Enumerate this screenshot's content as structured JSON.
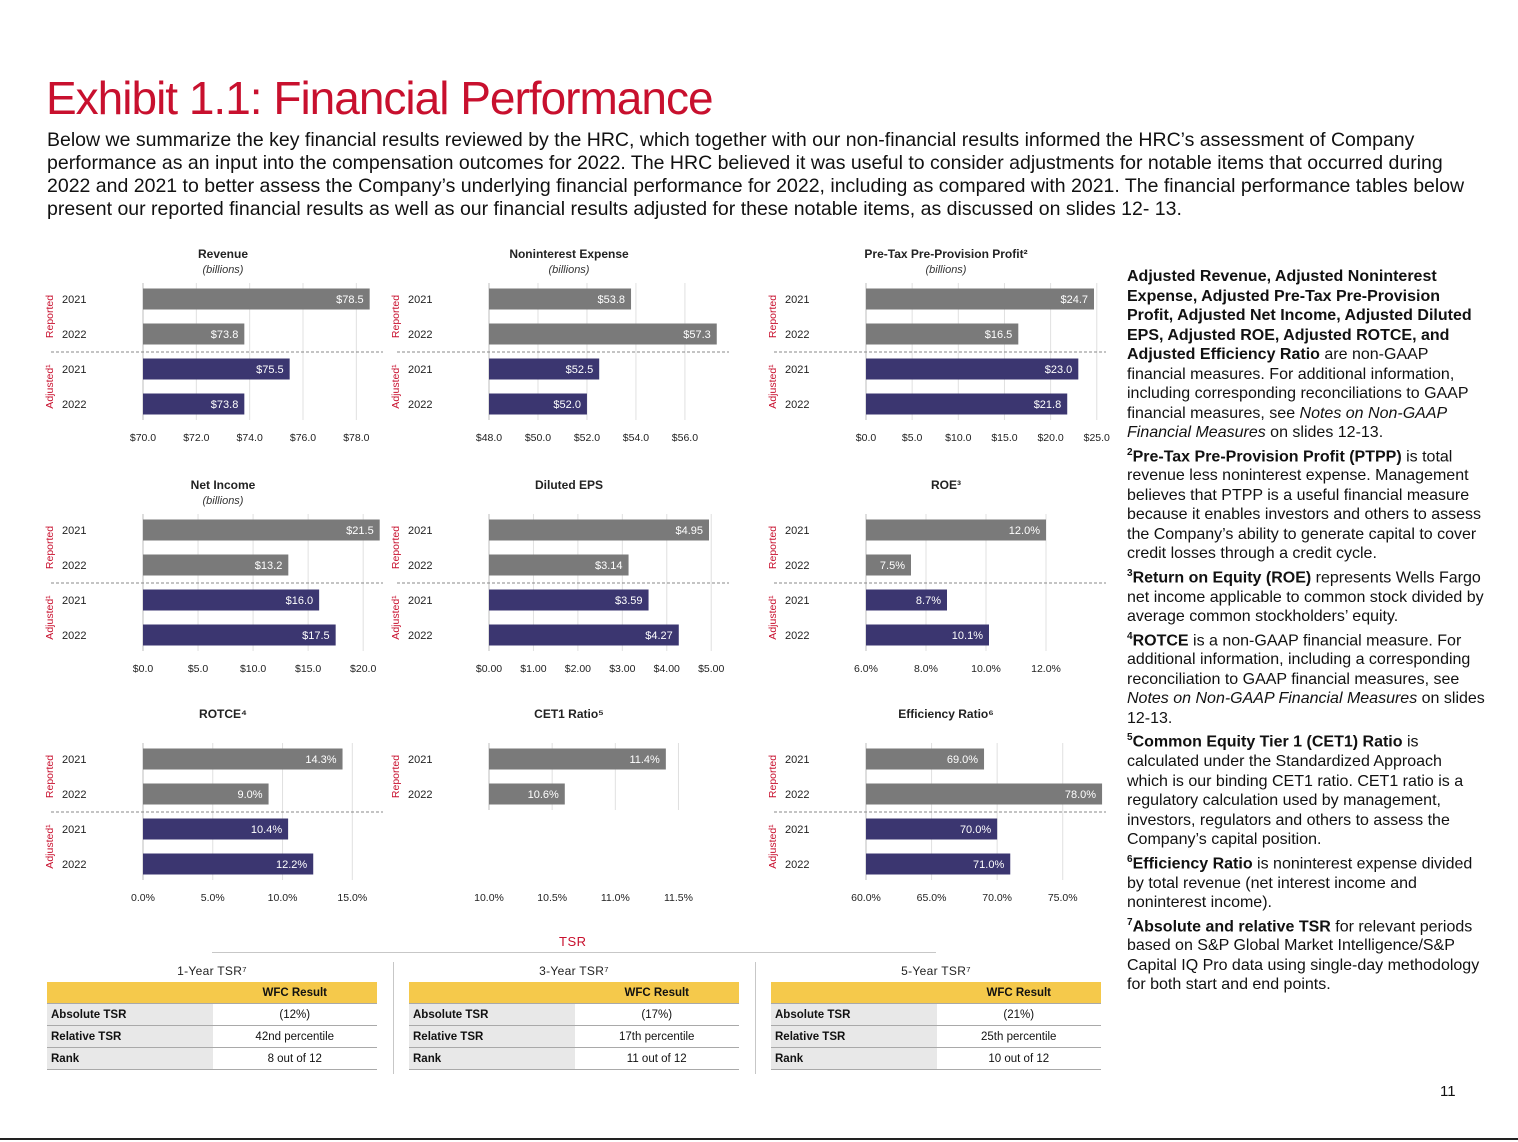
{
  "page": {
    "title": "Exhibit 1.1: Financial Performance",
    "intro": "Below we summarize the key financial results reviewed by the HRC, which together with our non-financial results informed the HRC’s assessment of Company performance as an input into the compensation outcomes for 2022. The HRC believed it was useful to consider adjustments for notable items that occurred during 2022 and 2021 to better assess the Company’s underlying financial performance for 2022, including as compared with 2021. The financial performance tables below present our reported financial results as well as our financial results adjusted for these notable items, as discussed on slides 12- 13.",
    "page_number": "11"
  },
  "colors": {
    "reported": "#7a7a7a",
    "adjusted": "#3b3670",
    "accent": "#c8102e",
    "tsr_header": "#f5c94b"
  },
  "chart_data": [
    {
      "type": "bar",
      "orientation": "horizontal",
      "title": "Revenue",
      "subtitle": "(billions)",
      "groups": [
        "Reported",
        "Adjusted¹"
      ],
      "categories": [
        "2021",
        "2022",
        "2021",
        "2022"
      ],
      "series": [
        {
          "values": [
            78.5,
            73.8,
            75.5,
            73.8
          ]
        }
      ],
      "labels": [
        "$78.5",
        "$73.8",
        "$75.5",
        "$73.8"
      ],
      "xlim": [
        70,
        79
      ],
      "ticks": [
        70,
        72,
        74,
        76,
        78
      ],
      "tick_labels": [
        "$70.0",
        "$72.0",
        "$74.0",
        "$76.0",
        "$78.0"
      ],
      "grid": true
    },
    {
      "type": "bar",
      "orientation": "horizontal",
      "title": "Noninterest Expense",
      "subtitle": "(billions)",
      "groups": [
        "Reported",
        "Adjusted¹"
      ],
      "categories": [
        "2021",
        "2022",
        "2021",
        "2022"
      ],
      "series": [
        {
          "values": [
            53.8,
            57.3,
            52.5,
            52.0
          ]
        }
      ],
      "labels": [
        "$53.8",
        "$57.3",
        "$52.5",
        "$52.0"
      ],
      "xlim": [
        48,
        57.8
      ],
      "ticks": [
        48,
        50,
        52,
        54,
        56
      ],
      "tick_labels": [
        "$48.0",
        "$50.0",
        "$52.0",
        "$54.0",
        "$56.0"
      ],
      "grid": true
    },
    {
      "type": "bar",
      "orientation": "horizontal",
      "title": "Pre-Tax Pre-Provision Profit²",
      "subtitle": "(billions)",
      "groups": [
        "Reported",
        "Adjusted¹"
      ],
      "categories": [
        "2021",
        "2022",
        "2021",
        "2022"
      ],
      "series": [
        {
          "values": [
            24.7,
            16.5,
            23.0,
            21.8
          ]
        }
      ],
      "labels": [
        "$24.7",
        "$16.5",
        "$23.0",
        "$21.8"
      ],
      "xlim": [
        0,
        26
      ],
      "ticks": [
        0,
        5,
        10,
        15,
        20,
        25
      ],
      "tick_labels": [
        "$0.0",
        "$5.0",
        "$10.0",
        "$15.0",
        "$20.0",
        "$25.0"
      ],
      "grid": true
    },
    {
      "type": "bar",
      "orientation": "horizontal",
      "title": "Net Income",
      "subtitle": "(billions)",
      "groups": [
        "Reported",
        "Adjusted¹"
      ],
      "categories": [
        "2021",
        "2022",
        "2021",
        "2022"
      ],
      "series": [
        {
          "values": [
            21.5,
            13.2,
            16.0,
            17.5
          ]
        }
      ],
      "labels": [
        "$21.5",
        "$13.2",
        "$16.0",
        "$17.5"
      ],
      "xlim": [
        0,
        21.8
      ],
      "ticks": [
        0,
        5,
        10,
        15,
        20
      ],
      "tick_labels": [
        "$0.0",
        "$5.0",
        "$10.0",
        "$15.0",
        "$20.0"
      ],
      "grid": true
    },
    {
      "type": "bar",
      "orientation": "horizontal",
      "title": "Diluted EPS",
      "subtitle": "",
      "groups": [
        "Reported",
        "Adjusted¹"
      ],
      "categories": [
        "2021",
        "2022",
        "2021",
        "2022"
      ],
      "series": [
        {
          "values": [
            4.95,
            3.14,
            3.59,
            4.27
          ]
        }
      ],
      "labels": [
        "$4.95",
        "$3.14",
        "$3.59",
        "$4.27"
      ],
      "xlim": [
        0,
        5.4
      ],
      "ticks": [
        0,
        1,
        2,
        3,
        4,
        5
      ],
      "tick_labels": [
        "$0.00",
        "$1.00",
        "$2.00",
        "$3.00",
        "$4.00",
        "$5.00"
      ],
      "grid": true
    },
    {
      "type": "bar",
      "orientation": "horizontal",
      "title": "ROE³",
      "subtitle": "",
      "groups": [
        "Reported",
        "Adjusted¹"
      ],
      "categories": [
        "2021",
        "2022",
        "2021",
        "2022"
      ],
      "series": [
        {
          "values": [
            12.0,
            7.5,
            8.7,
            10.1
          ]
        }
      ],
      "labels": [
        "12.0%",
        "7.5%",
        "8.7%",
        "10.1%"
      ],
      "xlim": [
        6,
        14
      ],
      "ticks": [
        6,
        8,
        10,
        12
      ],
      "tick_labels": [
        "6.0%",
        "8.0%",
        "10.0%",
        "12.0%"
      ],
      "grid": true
    },
    {
      "type": "bar",
      "orientation": "horizontal",
      "title": "ROTCE⁴",
      "subtitle": "",
      "groups": [
        "Reported",
        "Adjusted¹"
      ],
      "categories": [
        "2021",
        "2022",
        "2021",
        "2022"
      ],
      "series": [
        {
          "values": [
            14.3,
            9.0,
            10.4,
            12.2
          ]
        }
      ],
      "labels": [
        "14.3%",
        "9.0%",
        "10.4%",
        "12.2%"
      ],
      "xlim": [
        0,
        17.2
      ],
      "ticks": [
        0,
        5,
        10,
        15
      ],
      "tick_labels": [
        "0.0%",
        "5.0%",
        "10.0%",
        "15.0%"
      ],
      "grid": true
    },
    {
      "type": "bar",
      "orientation": "horizontal",
      "title": "CET1 Ratio⁵",
      "subtitle": "",
      "groups": [
        "Reported"
      ],
      "categories": [
        "2021",
        "2022"
      ],
      "series": [
        {
          "values": [
            11.4,
            10.6
          ]
        }
      ],
      "labels": [
        "11.4%",
        "10.6%"
      ],
      "xlim": [
        10,
        11.9
      ],
      "ticks": [
        10,
        10.5,
        11,
        11.5
      ],
      "tick_labels": [
        "10.0%",
        "10.5%",
        "11.0%",
        "11.5%"
      ],
      "grid": true
    },
    {
      "type": "bar",
      "orientation": "horizontal",
      "title": "Efficiency Ratio⁶",
      "subtitle": "",
      "groups": [
        "Reported",
        "Adjusted¹"
      ],
      "categories": [
        "2021",
        "2022",
        "2021",
        "2022"
      ],
      "series": [
        {
          "values": [
            69.0,
            78.0,
            70.0,
            71.0
          ]
        }
      ],
      "labels": [
        "69.0%",
        "78.0%",
        "70.0%",
        "71.0%"
      ],
      "xlim": [
        60,
        78.3
      ],
      "ticks": [
        60,
        65,
        70,
        75
      ],
      "tick_labels": [
        "60.0%",
        "65.0%",
        "70.0%",
        "75.0%"
      ],
      "grid": true
    }
  ],
  "tsr": {
    "title": "TSR",
    "header": "WFC Result",
    "row_labels": [
      "Absolute TSR",
      "Relative TSR",
      "Rank"
    ],
    "periods": [
      {
        "label": "1-Year TSR⁷",
        "absolute": "(12%)",
        "relative": "42nd percentile",
        "rank": "8 out of 12"
      },
      {
        "label": "3-Year TSR⁷",
        "absolute": "(17%)",
        "relative": "17th percentile",
        "rank": "11 out of 12"
      },
      {
        "label": "5-Year TSR⁷",
        "absolute": "(21%)",
        "relative": "25th percentile",
        "rank": "10 out of 12"
      }
    ]
  },
  "notes": {
    "n1_bold": "Adjusted Revenue, Adjusted Noninterest Expense, Adjusted Pre-Tax Pre-Provision Profit, Adjusted Net Income, Adjusted Diluted EPS, Adjusted ROE, Adjusted ROTCE, and Adjusted Efficiency Ratio",
    "n1_a": " are non-GAAP financial measures. For additional information, including corresponding reconciliations to GAAP financial measures, see ",
    "n1_i": "Notes on Non-GAAP Financial Measures",
    "n1_b": " on slides 12-13.",
    "n2_sup": "2",
    "n2_bold": "Pre-Tax Pre-Provision Profit (PTPP)",
    "n2_text": " is total revenue less noninterest expense. Management believes that PTPP is a useful financial measure because it enables investors and others to assess the Company’s ability to generate capital to cover credit losses through a credit cycle.",
    "n3_sup": "3",
    "n3_bold": "Return on Equity (ROE)",
    "n3_text": " represents Wells Fargo net income applicable to common stock divided by average common stockholders’ equity.",
    "n4_sup": "4",
    "n4_bold": "ROTCE",
    "n4_a": " is a non-GAAP financial measure. For additional information, including a corresponding reconciliation to GAAP financial measures, see ",
    "n4_i": "Notes on Non-GAAP Financial Measures",
    "n4_b": " on slides 12-13.",
    "n5_sup": "5",
    "n5_bold": "Common Equity Tier 1 (CET1) Ratio",
    "n5_text": " is calculated under the Standardized Approach which is our binding CET1 ratio. CET1 ratio is a regulatory calculation used by management, investors, regulators and others to assess the Company’s capital position.",
    "n6_sup": "6",
    "n6_bold": "Efficiency Ratio",
    "n6_text": " is noninterest expense divided by total revenue (net interest income and noninterest income).",
    "n7_sup": "7",
    "n7_bold": "Absolute and relative TSR",
    "n7_text": " for relevant periods based on S&P Global Market Intelligence/S&P Capital IQ Pro data using single-day methodology for both start and end points."
  }
}
